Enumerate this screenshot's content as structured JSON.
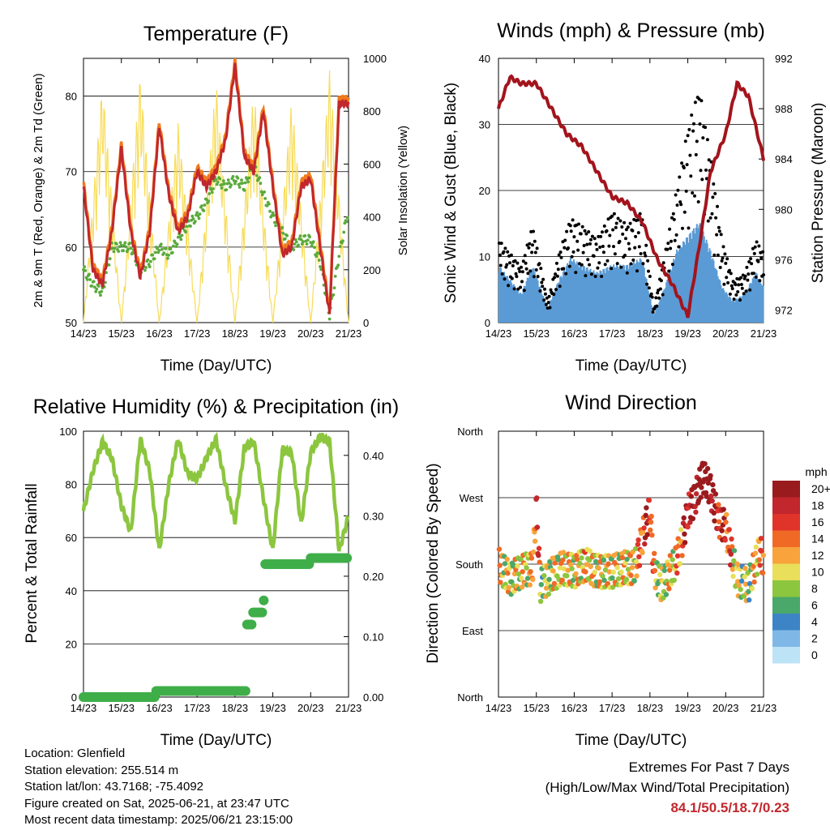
{
  "x_ticks": [
    "14/23",
    "15/23",
    "16/23",
    "17/23",
    "18/23",
    "19/23",
    "20/23",
    "21/23"
  ],
  "x_title": "Time (Day/UTC)",
  "info": {
    "location": "Location: Glenfield",
    "elevation": "Station elevation: 255.514 m",
    "latlon": "Station lat/lon: 43.7168; -75.4092",
    "created": "Figure created on Sat, 2025-06-21, at 23:47 UTC",
    "recent": "Most recent data timestamp: 2025/06/21 23:15:00"
  },
  "extremes": {
    "title": "Extremes For Past 7 Days",
    "subtitle": "(High/Low/Max Wind/Total Precipitation)",
    "values": "84.1/50.5/18.7/0.23"
  },
  "chart_data": [
    {
      "type": "line",
      "title": "Temperature (F)",
      "xlabel": "Time (Day/UTC)",
      "ylabel": "2m & 9m T (Red, Orange) & 2m Td (Green)",
      "y2label": "Solar Insolation (Yellow)",
      "ylim": [
        50,
        85
      ],
      "y2lim": [
        0,
        1000
      ],
      "yticks": [
        "50",
        "60",
        "70",
        "80"
      ],
      "y2ticks": [
        "0",
        "200",
        "400",
        "600",
        "800",
        "1000"
      ],
      "colors": {
        "t2m": "#c1272d",
        "t9m": "#f07a1e",
        "td": "#5aaa3c",
        "solar": "#f7dc5a"
      },
      "series": [
        {
          "key": "t2m",
          "x": [
            0,
            0.25,
            0.5,
            0.75,
            1,
            1.25,
            1.5,
            1.75,
            2,
            2.25,
            2.5,
            2.75,
            3,
            3.25,
            3.5,
            3.75,
            4,
            4.25,
            4.5,
            4.75,
            5,
            5.25,
            5.5,
            5.75,
            6,
            6.25,
            6.5,
            6.75,
            7
          ],
          "values": [
            68,
            57,
            55,
            62,
            73,
            62,
            56,
            62,
            76,
            67,
            62,
            64,
            70,
            68,
            70,
            74,
            84,
            72,
            70,
            78,
            68,
            59,
            60,
            68,
            69,
            60,
            51,
            79,
            79
          ]
        },
        {
          "key": "td",
          "x": [
            0,
            0.25,
            0.5,
            0.75,
            1,
            1.25,
            1.5,
            1.75,
            2,
            2.25,
            2.5,
            2.75,
            3,
            3.25,
            3.5,
            3.75,
            4,
            4.25,
            4.5,
            4.75,
            5,
            5.25,
            5.5,
            5.75,
            6,
            6.25,
            6.5,
            6.75,
            7
          ],
          "values": [
            57,
            55,
            54,
            60,
            60,
            60,
            57,
            58,
            60,
            59,
            61,
            63,
            64,
            66,
            69,
            68,
            69,
            68,
            71,
            67,
            64,
            62,
            60,
            61,
            61,
            58,
            51,
            59,
            65
          ]
        },
        {
          "key": "solar",
          "x": [
            0,
            0.5,
            1,
            1.5,
            2,
            2.5,
            3,
            3.5,
            4,
            4.5,
            5,
            5.5,
            6,
            6.5,
            7
          ],
          "values": [
            0,
            920,
            0,
            950,
            0,
            760,
            0,
            920,
            0,
            890,
            0,
            850,
            0,
            960,
            0
          ]
        }
      ]
    },
    {
      "type": "line",
      "title": "Winds (mph) & Pressure (mb)",
      "xlabel": "Time (Day/UTC)",
      "ylabel": "Sonic Wind & Gust (Blue, Black)",
      "y2label": "Station Pressure (Maroon)",
      "ylim": [
        0,
        40
      ],
      "y2lim": [
        971,
        992
      ],
      "yticks": [
        "0",
        "10",
        "20",
        "30",
        "40"
      ],
      "y2ticks": [
        "972",
        "976",
        "980",
        "984",
        "988",
        "992"
      ],
      "colors": {
        "pressure": "#a3141c",
        "wind": "#5b9bd5",
        "gust": "#000000"
      },
      "series": [
        {
          "key": "pressure",
          "x": [
            0,
            0.3,
            0.6,
            1,
            1.4,
            1.8,
            2.2,
            2.6,
            3,
            3.4,
            3.8,
            4.2,
            4.6,
            5,
            5.3,
            5.6,
            6,
            6.3,
            6.6,
            7
          ],
          "values": [
            988,
            990.5,
            990,
            990,
            988,
            986,
            985,
            983,
            981,
            980.5,
            979,
            976,
            974,
            971.5,
            977,
            983,
            986,
            990,
            989,
            984
          ]
        },
        {
          "key": "wind",
          "x": [
            0,
            0.3,
            0.6,
            0.9,
            1.3,
            1.6,
            1.9,
            2.2,
            2.6,
            3,
            3.4,
            3.8,
            4.1,
            4.4,
            4.7,
            5,
            5.3,
            5.6,
            5.9,
            6.2,
            6.5,
            6.8,
            7
          ],
          "values": [
            8,
            6,
            4,
            8,
            2,
            6,
            9,
            8,
            7,
            8,
            8,
            9,
            1,
            5,
            10,
            12,
            14,
            10,
            5,
            3,
            4,
            7,
            5
          ]
        },
        {
          "key": "gust",
          "x": [
            0,
            0.3,
            0.6,
            0.9,
            1.3,
            1.6,
            1.9,
            2.2,
            2.6,
            3,
            3.4,
            3.8,
            4.1,
            4.4,
            4.7,
            5,
            5.3,
            5.6,
            5.9,
            6.2,
            6.5,
            6.8,
            7
          ],
          "values": [
            12,
            10,
            8,
            14,
            3,
            10,
            15,
            14,
            12,
            16,
            14,
            16,
            2,
            10,
            19,
            28,
            34,
            24,
            12,
            6,
            7,
            12,
            10
          ]
        }
      ]
    },
    {
      "type": "line",
      "title": "Relative Humidity (%) & Precipitation (in)",
      "xlabel": "Time (Day/UTC)",
      "ylabel": "Percent & Total Rainfall",
      "ylim": [
        0,
        100
      ],
      "y2lim": [
        0,
        0.44
      ],
      "yticks": [
        "0",
        "20",
        "40",
        "60",
        "80",
        "100"
      ],
      "y2ticks": [
        "0.00",
        "0.10",
        "0.20",
        "0.30",
        "0.40"
      ],
      "colors": {
        "rh": "#8cc63f",
        "precip": "#3fae49"
      },
      "series": [
        {
          "key": "rh",
          "x": [
            0,
            0.25,
            0.5,
            0.75,
            1,
            1.25,
            1.5,
            1.75,
            2,
            2.25,
            2.5,
            2.75,
            3,
            3.25,
            3.5,
            3.75,
            4,
            4.25,
            4.5,
            4.75,
            5,
            5.25,
            5.5,
            5.75,
            6,
            6.25,
            6.5,
            6.75,
            7
          ],
          "values": [
            70,
            85,
            96,
            90,
            72,
            62,
            97,
            85,
            55,
            80,
            97,
            84,
            82,
            90,
            97,
            80,
            66,
            94,
            96,
            75,
            55,
            93,
            92,
            65,
            92,
            98,
            96,
            55,
            68
          ]
        },
        {
          "key": "precip",
          "x": [
            0,
            1.5,
            1.9,
            2.0,
            3,
            4,
            4.25,
            4.3,
            4.45,
            4.5,
            4.6,
            4.75,
            4.8,
            5,
            6,
            7
          ],
          "values": [
            0,
            0,
            0.01,
            0.01,
            0.01,
            0.01,
            0.01,
            0.12,
            0.14,
            0.14,
            0.14,
            0.16,
            0.22,
            0.22,
            0.23,
            0.23
          ]
        }
      ]
    },
    {
      "type": "scatter",
      "title": "Wind Direction",
      "xlabel": "Time (Day/UTC)",
      "ylabel": "Direction (Colored By Speed)",
      "ylim": [
        0,
        360
      ],
      "yticks": [
        "North",
        "East",
        "South",
        "West",
        "North"
      ],
      "colorbar": {
        "title": "mph",
        "labels": [
          "20+",
          "18",
          "16",
          "14",
          "12",
          "10",
          "8",
          "6",
          "4",
          "2",
          "0"
        ],
        "colors": [
          "#9a1b1e",
          "#c1272d",
          "#e0342a",
          "#f06a25",
          "#f8a33c",
          "#e9df5a",
          "#8cc63f",
          "#4aa86a",
          "#3d84c6",
          "#7fb8e6",
          "#bde3f7"
        ]
      },
      "series": [
        {
          "name": "direction",
          "x": [
            0,
            0.3,
            0.6,
            0.9,
            1,
            1.1,
            1.4,
            1.7,
            2,
            2.3,
            2.6,
            3,
            3.3,
            3.6,
            4,
            4.1,
            4.3,
            4.6,
            4.8,
            5,
            5.2,
            5.4,
            5.6,
            5.8,
            6,
            6.3,
            6.6,
            6.9,
            7
          ],
          "values": [
            180,
            160,
            170,
            175,
            260,
            150,
            165,
            175,
            170,
            180,
            170,
            170,
            175,
            175,
            255,
            175,
            150,
            175,
            200,
            250,
            270,
            300,
            280,
            240,
            230,
            160,
            150,
            200,
            180
          ]
        }
      ]
    }
  ]
}
